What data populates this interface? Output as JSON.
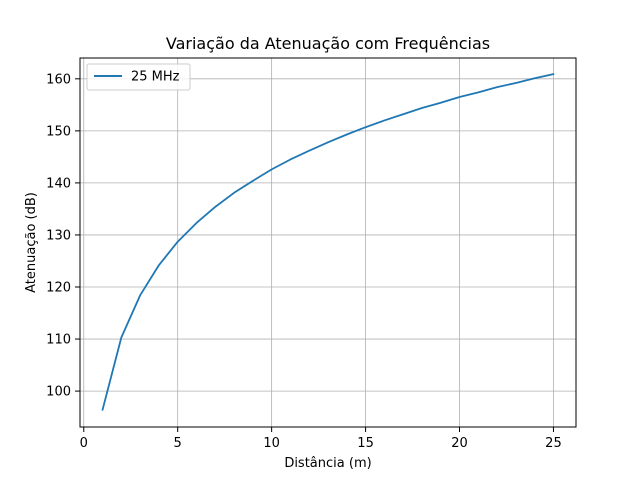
{
  "chart_data": {
    "type": "line",
    "title": "Variação da Atenuação com Frequências",
    "xlabel": "Distância (m)",
    "ylabel": "Atenuação (dB)",
    "xlim": [
      -0.2,
      26.2
    ],
    "ylim": [
      93.1,
      164.0
    ],
    "xticks": [
      0,
      5,
      10,
      15,
      20,
      25
    ],
    "yticks": [
      100,
      110,
      120,
      130,
      140,
      150,
      160
    ],
    "grid": true,
    "legend_position": "top-left",
    "series": [
      {
        "name": "25 MHz",
        "color": "#1f77b4",
        "x": [
          1,
          2,
          3,
          4,
          5,
          6,
          7,
          8,
          9,
          10,
          11,
          12,
          13,
          14,
          15,
          16,
          17,
          18,
          19,
          20,
          21,
          22,
          23,
          24,
          25
        ],
        "y": [
          96.4,
          110.3,
          118.4,
          124.2,
          128.7,
          132.3,
          135.4,
          138.1,
          140.4,
          142.6,
          144.5,
          146.2,
          147.8,
          149.3,
          150.7,
          152.0,
          153.2,
          154.4,
          155.4,
          156.5,
          157.4,
          158.4,
          159.2,
          160.1,
          160.9
        ]
      }
    ]
  }
}
